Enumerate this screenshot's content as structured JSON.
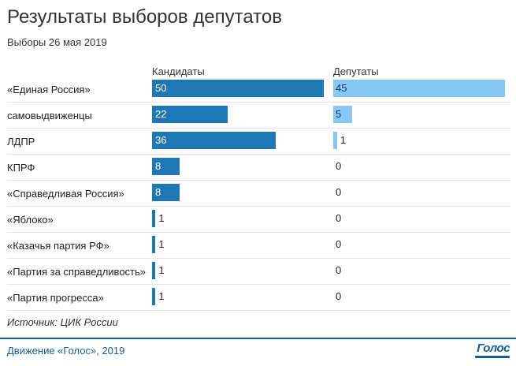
{
  "title": "Результаты выборов депутатов",
  "subtitle": "Выборы 26 мая 2019",
  "source": "Источник: ЦИК России",
  "footer": "Движение «Голос», 2019",
  "logo_text": "Голос",
  "colors": {
    "candidates": "#1f77b4",
    "deputies": "#89c8f5",
    "footer": "#1a5a96"
  },
  "chart_data": {
    "type": "bar",
    "orientation": "horizontal",
    "categories": [
      "«Единая Россия»",
      "самовыдвиженцы",
      "ЛДПР",
      "КПРФ",
      "«Справедливая Россия»",
      "«Яблоко»",
      "«Казачья партия РФ»",
      "«Партия за справедливость»",
      "«Партия прогресса»"
    ],
    "series": [
      {
        "name": "Кандидаты",
        "values": [
          50,
          22,
          36,
          8,
          8,
          1,
          1,
          1,
          1
        ]
      },
      {
        "name": "Депутаты",
        "values": [
          45,
          5,
          1,
          0,
          0,
          0,
          0,
          0,
          0
        ]
      }
    ],
    "grid": false,
    "legend": "column headers"
  }
}
